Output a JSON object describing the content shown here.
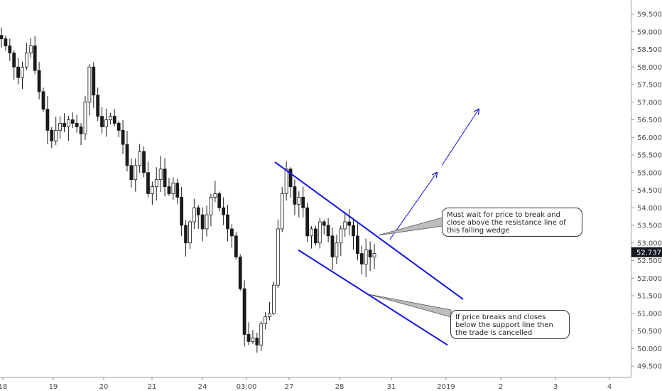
{
  "chart_data": {
    "type": "candlestick",
    "x_tick_labels": [
      "18",
      "19",
      "20",
      "21",
      "24",
      "03:00",
      "27",
      "28",
      "31",
      "2019",
      "2",
      "3",
      "4"
    ],
    "y_ticks": [
      "49.500",
      "50.000",
      "50.500",
      "51.000",
      "51.500",
      "52.000",
      "52.500",
      "53.000",
      "53.500",
      "54.000",
      "54.500",
      "55.000",
      "55.500",
      "56.000",
      "56.500",
      "57.000",
      "57.500",
      "58.000",
      "58.500",
      "59.000",
      "59.500"
    ],
    "ylim": [
      49.2,
      59.85
    ],
    "last_price": "52.737",
    "grid": false,
    "candle_close_path": [
      58.8,
      58.6,
      58.4,
      58.0,
      57.7,
      58.0,
      58.4,
      58.6,
      57.9,
      57.3,
      56.8,
      56.2,
      55.9,
      56.2,
      56.4,
      56.3,
      56.5,
      56.4,
      56.3,
      56.1,
      57.0,
      58.0,
      57.2,
      56.6,
      56.3,
      56.5,
      56.6,
      56.4,
      56.2,
      55.8,
      55.2,
      54.8,
      55.2,
      55.6,
      55.0,
      54.4,
      54.6,
      54.8,
      55.1,
      54.6,
      54.4,
      54.7,
      54.3,
      53.5,
      53.0,
      53.6,
      54.0,
      53.8,
      53.4,
      53.8,
      54.3,
      54.4,
      54.0,
      53.8,
      53.4,
      53.2,
      52.6,
      51.7,
      50.4,
      50.2,
      50.3,
      50.1,
      50.7,
      50.9,
      51.0,
      51.8,
      53.4,
      54.4,
      55.1,
      54.6,
      54.1,
      54.3,
      54.0,
      53.2,
      53.4,
      53.0,
      53.6,
      53.5,
      53.2,
      52.6,
      53.0,
      53.4,
      53.6,
      53.5,
      53.2,
      52.7,
      52.4,
      52.8,
      52.6,
      52.7
    ],
    "drawings": {
      "channel_upper": [
        [
          387,
          55.3
        ],
        [
          652,
          51.4
        ]
      ],
      "channel_lower": [
        [
          420,
          52.8
        ],
        [
          630,
          50.1
        ]
      ],
      "projection_arrow_1": [
        [
          549,
          53.1
        ],
        [
          615,
          55.0
        ]
      ],
      "projection_arrow_2": [
        [
          622,
          55.2
        ],
        [
          674,
          56.8
        ]
      ]
    },
    "annotations": [
      {
        "text": "Must wait for price to break and close above the resistance line of this falling wedge",
        "target": "upper resistance line"
      },
      {
        "text": "If price breaks and closes below the support line then the trade is cancelled",
        "target": "lower support line"
      }
    ]
  },
  "colors": {
    "background": "#ffffff",
    "candle_body_down": "#1a1a1a",
    "candle_body_up": "#ffffff",
    "candle_outline": "#1a1a1a",
    "trendline": "#1414e0",
    "price_badge": "#131722"
  }
}
